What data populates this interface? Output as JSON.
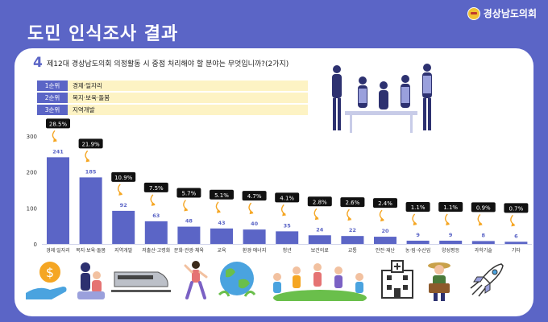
{
  "header": {
    "title": "도민 인식조사 결과",
    "logo_text": "경상남도의회"
  },
  "question": {
    "number": "4",
    "text": "제12대 경상남도의회 의정활동 시 중점 처리해야 할 분야는 무엇입니까?(2가지)"
  },
  "ranking": [
    {
      "rank": "1순위",
      "label": "경제·일자리"
    },
    {
      "rank": "2순위",
      "label": "복지·보육·돌봄"
    },
    {
      "rank": "3순위",
      "label": "지역개발"
    }
  ],
  "chart_data": {
    "type": "bar",
    "categories": [
      "경제·일자리",
      "복지·보육·돌봄",
      "지역개발",
      "저출산·고령화",
      "문화·관광·체육",
      "교육",
      "환경·에너지",
      "청년",
      "보건의료",
      "교통",
      "안전·재난",
      "농·림·수산업",
      "양성평등",
      "과학기술",
      "기타"
    ],
    "values": [
      241,
      185,
      92,
      63,
      48,
      43,
      40,
      35,
      24,
      22,
      20,
      9,
      9,
      8,
      6
    ],
    "percent_labels": [
      "28.5%",
      "21.9%",
      "10.9%",
      "7.5%",
      "5.7%",
      "5.1%",
      "4.7%",
      "4.1%",
      "2.8%",
      "2.6%",
      "2.4%",
      "1.1%",
      "1.1%",
      "0.9%",
      "0.7%"
    ],
    "y_ticks": [
      0,
      100,
      200,
      300
    ],
    "ylim": [
      0,
      300
    ],
    "bar_color": "#5b65c6",
    "highlight_color": "#f5a623"
  },
  "illustrations": [
    "meeting-people-icon",
    "money-hand-icon",
    "family-care-icon",
    "train-icon",
    "exercise-woman-icon",
    "earth-icon",
    "people-circle-icon",
    "hospital-icon",
    "farmer-icon",
    "rocket-icon"
  ]
}
